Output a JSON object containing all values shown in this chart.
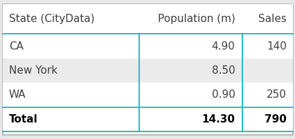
{
  "columns": [
    "State (CityData)",
    "Population (m)",
    "Sales"
  ],
  "rows": [
    [
      "CA",
      "4.90",
      "140"
    ],
    [
      "New York",
      "8.50",
      ""
    ],
    [
      "WA",
      "0.90",
      "250"
    ]
  ],
  "total_row": [
    "Total",
    "14.30",
    "790"
  ],
  "header_color": "#ffffff",
  "row_colors": [
    "#ffffff",
    "#ebebeb",
    "#ffffff"
  ],
  "total_row_color": "#ffffff",
  "border_color": "#00b4b4",
  "outer_border_color": "#b0b0b0",
  "header_text_color": "#404040",
  "row_text_color": "#404040",
  "total_text_color": "#000000",
  "header_fontsize": 11,
  "row_fontsize": 11,
  "figsize": [
    4.27,
    2.02
  ],
  "dpi": 100
}
